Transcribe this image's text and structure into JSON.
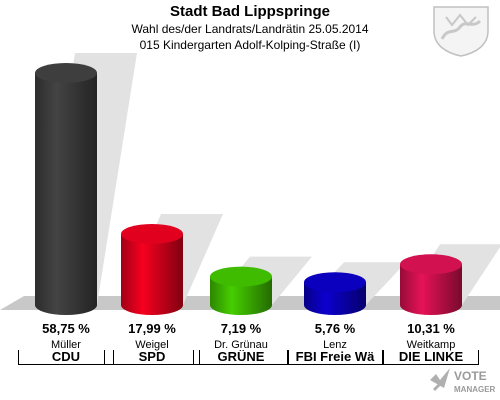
{
  "header": {
    "title": "Stadt Bad Lippspringe",
    "subtitle1": "Wahl des/der Landrats/Landrätin 25.05.2014",
    "subtitle2": "015 Kindergarten Adolf-Kolping-Straße (I)"
  },
  "chart_data": {
    "type": "bar",
    "categories": [
      "CDU",
      "SPD",
      "GRÜNE",
      "FBI Freie Wä",
      "DIE LINKE"
    ],
    "candidates": [
      "Müller",
      "Weigel",
      "Dr. Grünau",
      "Lenz",
      "Weitkamp"
    ],
    "values": [
      58.75,
      17.99,
      7.19,
      5.76,
      10.31
    ],
    "value_labels": [
      "58,75 %",
      "17,99 %",
      "7,19 %",
      "5,76 %",
      "10,31 %"
    ],
    "colors": [
      "#3b3b3b",
      "#d6001c",
      "#3cb300",
      "#0a00b4",
      "#c8104c"
    ],
    "ylim": [
      0,
      60
    ]
  },
  "logo": {
    "text1": "VOTE",
    "text2": "MANAGER"
  }
}
